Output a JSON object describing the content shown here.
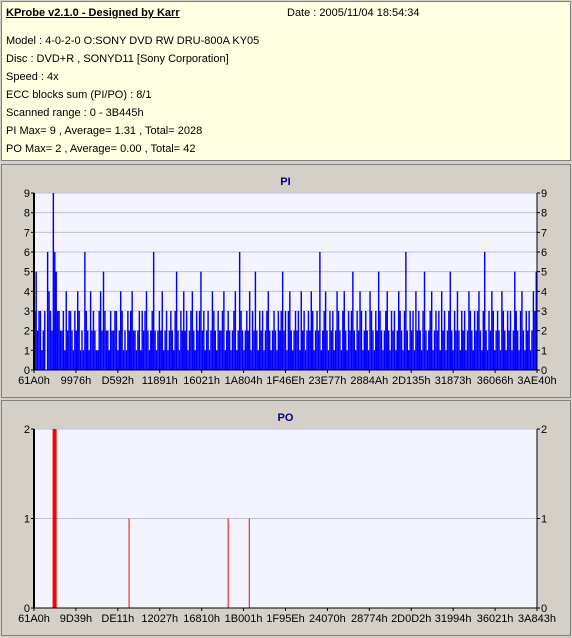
{
  "info": {
    "title": "KProbe v2.1.0 - Designed by Karr",
    "date": "Date : 2005/11/04 18:54:34",
    "lines": [
      "Model : 4-0-2-0 O:SONY    DVD RW DRU-800A  KY05",
      "Disc : DVD+R , SONYD11 [Sony Corporation]",
      "Speed : 4x",
      "ECC blocks sum (PI/PO) : 8/1",
      "Scanned range : 0 - 3B445h",
      "PI Max= 9 , Average= 1.31 , Total= 2028",
      "PO Max= 2 , Average= 0.00 , Total= 42"
    ]
  },
  "colors": {
    "pi_bar": "#0000ff",
    "po_bar": "#ff0000",
    "plot_bg": "#f4f4ff",
    "grid": "#c0c0d8",
    "title": "#000080"
  },
  "chart_data": [
    {
      "type": "bar",
      "title": "PI",
      "ylim": [
        0,
        9
      ],
      "yticks": [
        0,
        1,
        2,
        3,
        4,
        5,
        6,
        7,
        8,
        9
      ],
      "xticks": [
        "61A0h",
        "9976h",
        "D592h",
        "11891h",
        "16021h",
        "1A804h",
        "1F46Eh",
        "23E77h",
        "2884Ah",
        "2D135h",
        "31873h",
        "36066h",
        "3AE40h"
      ],
      "values": [
        3,
        5,
        2,
        3,
        3,
        1,
        2,
        3,
        0,
        6,
        4,
        3,
        2,
        9,
        6,
        5,
        3,
        3,
        2,
        2,
        3,
        1,
        4,
        2,
        3,
        3,
        2,
        1,
        3,
        2,
        4,
        3,
        1,
        2,
        1,
        6,
        3,
        2,
        1,
        4,
        2,
        3,
        2,
        1,
        1,
        3,
        4,
        2,
        5,
        3,
        2,
        2,
        1,
        3,
        2,
        2,
        3,
        3,
        1,
        2,
        4,
        3,
        1,
        2,
        1,
        3,
        2,
        3,
        4,
        2,
        2,
        1,
        2,
        3,
        1,
        3,
        2,
        3,
        4,
        2,
        1,
        2,
        3,
        6,
        2,
        1,
        2,
        3,
        2,
        4,
        1,
        2,
        3,
        1,
        2,
        3,
        2,
        1,
        3,
        5,
        2,
        1,
        3,
        2,
        4,
        2,
        3,
        1,
        2,
        3,
        4,
        2,
        1,
        3,
        2,
        3,
        5,
        2,
        3,
        1,
        2,
        3,
        1,
        2,
        4,
        3,
        2,
        1,
        3,
        2,
        2,
        3,
        4,
        1,
        2,
        3,
        2,
        1,
        2,
        3,
        4,
        1,
        2,
        6,
        3,
        2,
        1,
        2,
        3,
        2,
        4,
        1,
        3,
        2,
        5,
        2,
        1,
        3,
        2,
        3,
        1,
        2,
        3,
        4,
        2,
        1,
        2,
        3,
        2,
        1,
        3,
        2,
        3,
        5,
        2,
        3,
        1,
        3,
        4,
        2,
        1,
        2,
        3,
        2,
        3,
        1,
        4,
        2,
        3,
        1,
        2,
        3,
        2,
        4,
        3,
        1,
        2,
        3,
        2,
        6,
        1,
        2,
        3,
        4,
        2,
        1,
        3,
        2,
        3,
        1,
        2,
        4,
        3,
        2,
        1,
        3,
        4,
        2,
        1,
        3,
        2,
        3,
        5,
        2,
        1,
        3,
        2,
        4,
        3,
        1,
        2,
        3,
        2,
        1,
        4,
        3,
        2,
        1,
        3,
        2,
        5,
        3,
        2,
        1,
        2,
        3,
        4,
        2,
        1,
        3,
        2,
        3,
        1,
        2,
        4,
        3,
        2,
        1,
        3,
        6,
        2,
        1,
        3,
        2,
        3,
        1,
        4,
        2,
        3,
        2,
        1,
        3,
        5,
        2,
        1,
        2,
        3,
        4,
        1,
        2,
        3,
        2,
        3,
        1,
        4,
        2,
        3,
        1,
        2,
        3,
        5,
        2,
        1,
        3,
        2,
        4,
        2,
        1,
        3,
        2,
        3,
        1,
        2,
        4,
        3,
        2,
        1,
        3,
        2,
        3,
        4,
        2,
        1,
        3,
        6,
        2,
        1,
        3,
        2,
        4,
        3,
        1,
        2,
        3,
        2,
        1,
        4,
        3,
        2,
        1,
        3,
        2,
        3,
        1,
        2,
        5,
        3,
        2,
        1,
        3,
        4,
        2,
        1,
        3,
        2,
        3,
        1,
        2,
        4,
        3,
        5
      ]
    },
    {
      "type": "bar",
      "title": "PO",
      "ylim": [
        0,
        2
      ],
      "yticks": [
        0,
        1,
        2
      ],
      "xticks": [
        "61A0h",
        "9D39h",
        "DE11h",
        "12027h",
        "16810h",
        "1B001h",
        "1F95Eh",
        "24070h",
        "28774h",
        "2D0D2h",
        "31994h",
        "36021h",
        "3A843h"
      ],
      "values": [
        0,
        0,
        0,
        0,
        0,
        0,
        0,
        0,
        0,
        0,
        0,
        0,
        0,
        0,
        0,
        0,
        0,
        0,
        0,
        0,
        0,
        0,
        0,
        0,
        0,
        0,
        0,
        0,
        0,
        0,
        0,
        0,
        0,
        0,
        0,
        0,
        0,
        0,
        0,
        0,
        0,
        0,
        0,
        0,
        0,
        0,
        0,
        0,
        0,
        0,
        0,
        0,
        0,
        0,
        0,
        0,
        0,
        0,
        0,
        0,
        0,
        0,
        0,
        0,
        0,
        0,
        0,
        0,
        0,
        0,
        0,
        0,
        0,
        0,
        0,
        0,
        0,
        0,
        0,
        0,
        0,
        0,
        0,
        0,
        0,
        0,
        0,
        0,
        0,
        0,
        0,
        0,
        0,
        0,
        0,
        0,
        0,
        0,
        0,
        0,
        0,
        0,
        0,
        0,
        0,
        0,
        0,
        0,
        0,
        0,
        0,
        0,
        0,
        0,
        0,
        0,
        0,
        0,
        0,
        0,
        0,
        0,
        0,
        0,
        0,
        0,
        0,
        0,
        0,
        0,
        0,
        0,
        0,
        0,
        0,
        0,
        0,
        0,
        0,
        0,
        0,
        0,
        0,
        0,
        0,
        0,
        0,
        0,
        0,
        0,
        0,
        0,
        0,
        0,
        0,
        0,
        0,
        0,
        0,
        0,
        0,
        0,
        0,
        0,
        0,
        0,
        0,
        0,
        0,
        0,
        0,
        0,
        0,
        0,
        0,
        0,
        0,
        0,
        0,
        0,
        0,
        0,
        0,
        0,
        0,
        0,
        0,
        0,
        0,
        0,
        0,
        0,
        0,
        0,
        0,
        0,
        0,
        0,
        0,
        0,
        0,
        0,
        0,
        0,
        0,
        0,
        0,
        0,
        0,
        0,
        0,
        0,
        0,
        0,
        0,
        0,
        0,
        0,
        0,
        0,
        0,
        0,
        0,
        0,
        0,
        0,
        0,
        0,
        0,
        0,
        0,
        0,
        0,
        0,
        0,
        0,
        0,
        0,
        0,
        0,
        0,
        0,
        0,
        0,
        0,
        0,
        0,
        0,
        0,
        0,
        0,
        0,
        0,
        0,
        0,
        0,
        0,
        0,
        0,
        0,
        0,
        0,
        0,
        0,
        0,
        0,
        0,
        0,
        0,
        0,
        0,
        0,
        0,
        0,
        0,
        0,
        0,
        0,
        0,
        0,
        0,
        0,
        0,
        0,
        0,
        0,
        0,
        0,
        0,
        0,
        0,
        0,
        0,
        0,
        0,
        0,
        0,
        0,
        0,
        0,
        0,
        0,
        0,
        0,
        0,
        0,
        0,
        0,
        0,
        0,
        0,
        0,
        0,
        0,
        0,
        0,
        0,
        0,
        0,
        0,
        0,
        0,
        0,
        0,
        0,
        0,
        0,
        0,
        0,
        0,
        0,
        0,
        0,
        0,
        0,
        0,
        0,
        0,
        0,
        0,
        0,
        0,
        0,
        0,
        0,
        0,
        0,
        0,
        0,
        0,
        0,
        0,
        0,
        0,
        0,
        0,
        0,
        0,
        0,
        0,
        0,
        0,
        0,
        0,
        0,
        0,
        0,
        0,
        0,
        0,
        0,
        0,
        0,
        0,
        0,
        0,
        0,
        0,
        0,
        0,
        0,
        0,
        0,
        0,
        0,
        0,
        0,
        0,
        0,
        0,
        0,
        0,
        0,
        0,
        0,
        0,
        0,
        0,
        0,
        0,
        0,
        0,
        0,
        0,
        0,
        0,
        0,
        0,
        0,
        0,
        0,
        0,
        0,
        0,
        0,
        0,
        0,
        0,
        0,
        0,
        0,
        0,
        0,
        0,
        0,
        0,
        0,
        0,
        0,
        0,
        0,
        0,
        0,
        0,
        0,
        0,
        0,
        0,
        0,
        0,
        0,
        0,
        0,
        0,
        0,
        0,
        0,
        0,
        0,
        0,
        0,
        0,
        0,
        0,
        0,
        0,
        0,
        0,
        0,
        0,
        0,
        0,
        0,
        0,
        0,
        0,
        0,
        0,
        0,
        0,
        0,
        0,
        0,
        0,
        0,
        0,
        0,
        0,
        0,
        0,
        0,
        0,
        0,
        0,
        0,
        0,
        0,
        0,
        0,
        0,
        0,
        0,
        0,
        0,
        0,
        0,
        0,
        0,
        0,
        0,
        0,
        0,
        0,
        0,
        0,
        0,
        0,
        0,
        0,
        0,
        0,
        0,
        0,
        0,
        0,
        0,
        0,
        0,
        0,
        0,
        0,
        0,
        0,
        0,
        0,
        0,
        0,
        0,
        0,
        0,
        0,
        0,
        0,
        0,
        0,
        0,
        0,
        0,
        0,
        0,
        0,
        0,
        0,
        0
      ],
      "highlights": [
        {
          "index_fraction": 0.037,
          "value": 2,
          "bold": true
        },
        {
          "index_fraction": 0.188,
          "value": 1
        },
        {
          "index_fraction": 0.385,
          "value": 1
        },
        {
          "index_fraction": 0.427,
          "value": 1
        }
      ]
    }
  ]
}
